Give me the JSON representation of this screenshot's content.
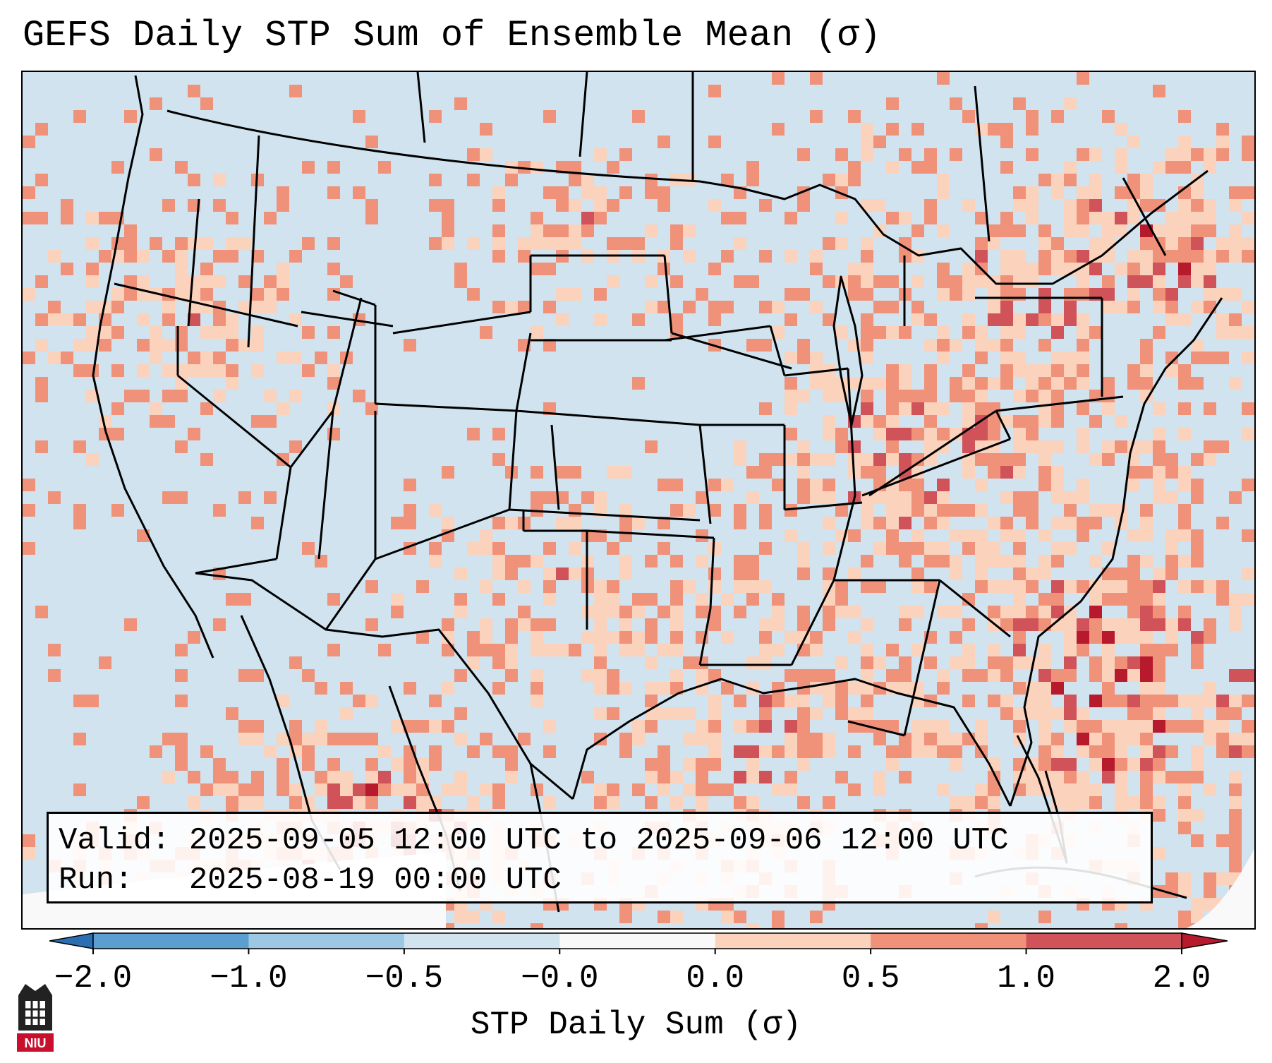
{
  "title": "GEFS Daily STP Sum of Ensemble Mean (σ)",
  "info": {
    "valid_line": "Valid: 2025-09-05 12:00 UTC to 2025-09-06 12:00 UTC",
    "run_line": "Run:   2025-08-19 00:00 UTC"
  },
  "colorbar": {
    "label": "STP Daily Sum (σ)",
    "ticks": [
      "−2.0",
      "−1.0",
      "−0.5",
      "−0.0",
      "0.0",
      "0.5",
      "1.0",
      "2.0"
    ],
    "colors": [
      "#2b6fb2",
      "#5b9fd0",
      "#9dc8e3",
      "#d0e3ef",
      "#f9f9f9",
      "#fbd2bc",
      "#f0927a",
      "#d0535a",
      "#b7192d"
    ]
  },
  "logo_text": "NIU"
}
